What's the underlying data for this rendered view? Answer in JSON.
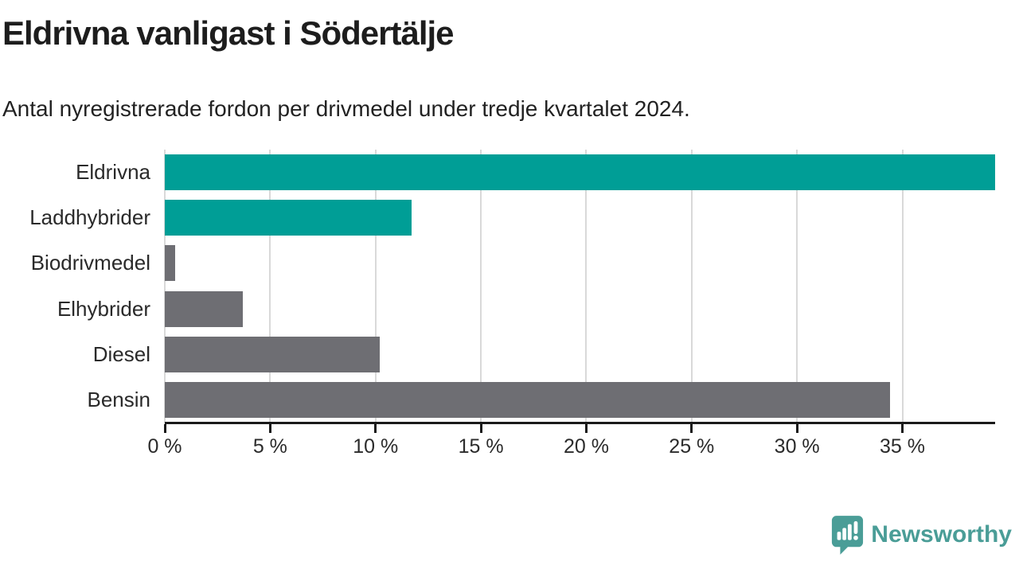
{
  "header": {
    "title": "Eldrivna vanligast i Södertälje",
    "subtitle": "Antal nyregistrerade fordon per drivmedel under tredje kvartalet 2024."
  },
  "chart_data": {
    "type": "bar",
    "orientation": "horizontal",
    "title": "Eldrivna vanligast i Södertälje",
    "subtitle": "Antal nyregistrerade fordon per drivmedel under tredje kvartalet 2024.",
    "categories": [
      "Eldrivna",
      "Laddhybrider",
      "Biodrivmedel",
      "Elhybrider",
      "Diesel",
      "Bensin"
    ],
    "values": [
      39.4,
      11.7,
      0.5,
      3.7,
      10.2,
      34.4
    ],
    "unit": "%",
    "bar_colors": [
      "#009e96",
      "#009e96",
      "#6e6e73",
      "#6e6e73",
      "#6e6e73",
      "#6e6e73"
    ],
    "highlight_color": "#009e96",
    "base_color": "#6e6e73",
    "xlim": [
      0,
      39.4
    ],
    "x_ticks": [
      0,
      5,
      10,
      15,
      20,
      25,
      30,
      35
    ],
    "x_tick_label_suffix": " %",
    "grid": true,
    "gridline_color": "#d9d9d9",
    "axis_color": "#1a1a1a",
    "legend": false
  },
  "footer": {
    "logo_text": "Newsworthy",
    "logo_color": "#4a9d97"
  }
}
